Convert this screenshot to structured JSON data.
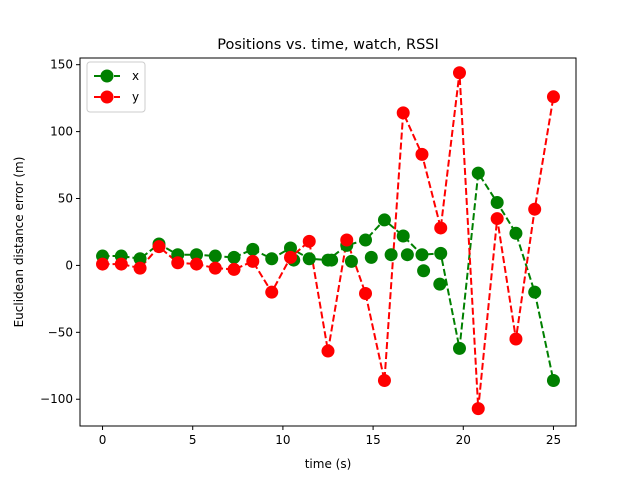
{
  "chart_data": {
    "type": "line",
    "title": "Positions vs. time, watch, RSSI",
    "xlabel": "time (s)",
    "ylabel": "Euclidean distance error (m)",
    "xlim": [
      -1.25,
      26.25
    ],
    "ylim": [
      -120,
      155
    ],
    "xticks": [
      0,
      5,
      10,
      15,
      20,
      25
    ],
    "yticks": [
      -100,
      -50,
      0,
      50,
      100,
      150
    ],
    "xtick_labels": [
      "0",
      "5",
      "10",
      "15",
      "20",
      "25"
    ],
    "ytick_labels": [
      "−100",
      "−50",
      "0",
      "50",
      "100",
      "150"
    ],
    "legend_position": "top-left",
    "grid": false,
    "x": [
      0,
      1.04,
      2.08,
      3.13,
      4.17,
      5.21,
      6.25,
      7.29,
      8.33,
      9.38,
      10.42,
      11.46,
      12.5,
      13.54,
      14.58,
      15.63,
      16.67,
      17.71,
      18.75,
      19.79,
      20.83,
      21.88,
      22.92,
      23.96,
      25.0
    ],
    "series": [
      {
        "name": "x",
        "color": "#008000",
        "values": [
          7,
          7,
          5,
          16,
          8,
          8,
          7,
          6,
          12,
          5,
          13,
          5,
          4,
          15,
          19,
          34,
          22,
          8,
          9,
          -62,
          69,
          47,
          24,
          -20,
          -86
        ]
      },
      {
        "name": "y",
        "color": "#ff0000",
        "values": [
          1,
          1,
          -2,
          14,
          2,
          1,
          -2,
          -3,
          3,
          -20,
          6,
          18,
          -64,
          19,
          -21,
          -86,
          114,
          83,
          28,
          144,
          -107,
          35,
          -55,
          42,
          126
        ]
      }
    ],
    "extra_points": [
      {
        "series": "x",
        "x": 10.6,
        "y": 4
      },
      {
        "series": "x",
        "x": 12.7,
        "y": 4
      },
      {
        "series": "x",
        "x": 13.8,
        "y": 3
      },
      {
        "series": "x",
        "x": 14.9,
        "y": 6
      },
      {
        "series": "x",
        "x": 16.0,
        "y": 8
      },
      {
        "series": "x",
        "x": 16.9,
        "y": 8
      },
      {
        "series": "x",
        "x": 17.8,
        "y": -4
      },
      {
        "series": "x",
        "x": 18.7,
        "y": -14
      }
    ]
  }
}
